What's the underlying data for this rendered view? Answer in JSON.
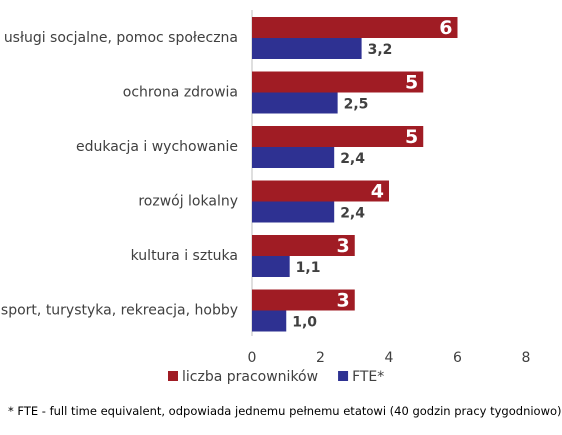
{
  "chart_data": {
    "type": "bar",
    "orientation": "horizontal",
    "categories": [
      "usługi socjalne, pomoc społeczna",
      "ochrona zdrowia",
      "edukacja i wychowanie",
      "rozwój lokalny",
      "kultura i sztuka",
      "sport, turystyka, rekreacja, hobby"
    ],
    "series": [
      {
        "name": "liczba pracowników",
        "values": [
          6,
          5,
          5,
          4,
          3,
          3
        ],
        "labels": [
          "6",
          "5",
          "5",
          "4",
          "3",
          "3"
        ],
        "color": "#a01c24"
      },
      {
        "name": "FTE*",
        "values": [
          3.2,
          2.5,
          2.4,
          2.4,
          1.1,
          1.0
        ],
        "labels": [
          "3,2",
          "2,5",
          "2,4",
          "2,4",
          "1,1",
          "1,0"
        ],
        "color": "#2e3192"
      }
    ],
    "xlim": [
      0,
      8
    ],
    "xticks": [
      "0",
      "2",
      "4",
      "6",
      "8"
    ],
    "grid": false,
    "legend": "bottom",
    "footnote": "* FTE - full time equivalent, odpowiada jednemu pełnemu etatowi (40 godzin pracy tygodniowo)"
  }
}
